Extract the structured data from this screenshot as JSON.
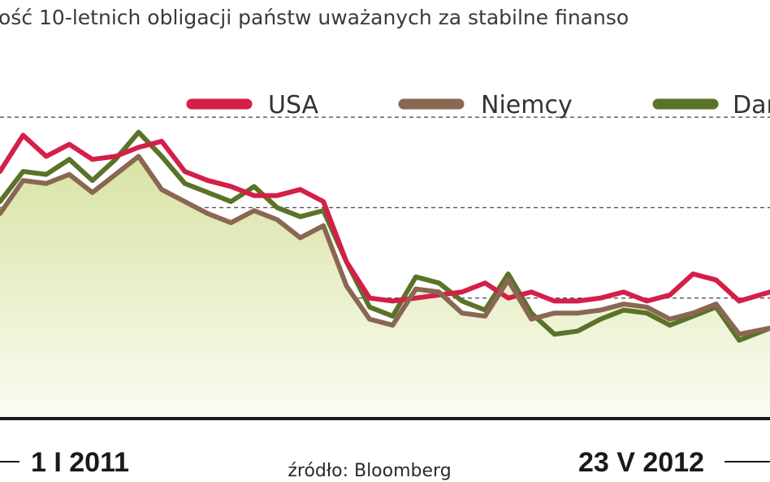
{
  "chart_data": {
    "type": "line",
    "title": "ość 10-letnich obligacji państw uważanych za stabilne finanso",
    "source": "źródło: Bloomberg",
    "x_labels": [
      "1 I 2011",
      "23 V 2012"
    ],
    "ylim": [
      0,
      6
    ],
    "grid": true,
    "legend_position": "top",
    "colors": {
      "USA": "#d41f48",
      "Niemcy": "#8a6752",
      "Dania": "#5a7328",
      "area_top": "#d8e3a4",
      "area_bottom": "#fbfcf2",
      "grid": "#555555",
      "baseline": "#1a1a1a"
    },
    "x": [
      0,
      3,
      6,
      9,
      12,
      15,
      18,
      21,
      24,
      27,
      30,
      33,
      36,
      39,
      42,
      45,
      48,
      51,
      54,
      57,
      60,
      63,
      66,
      69,
      72,
      75,
      78,
      81,
      84,
      87,
      90,
      93,
      96,
      100
    ],
    "series": [
      {
        "name": "USA",
        "values": [
          4.1,
          4.7,
          4.35,
          4.55,
          4.3,
          4.35,
          4.5,
          4.6,
          4.1,
          3.95,
          3.85,
          3.7,
          3.7,
          3.8,
          3.6,
          2.6,
          2.0,
          1.95,
          2.0,
          2.05,
          2.1,
          2.25,
          2.0,
          2.1,
          1.95,
          1.95,
          2.0,
          2.1,
          1.95,
          2.05,
          2.4,
          2.3,
          1.95,
          2.1
        ]
      },
      {
        "name": "Niemcy",
        "values": [
          3.4,
          3.95,
          3.9,
          4.05,
          3.75,
          4.05,
          4.35,
          3.8,
          3.6,
          3.4,
          3.25,
          3.45,
          3.3,
          3.0,
          3.2,
          2.2,
          1.65,
          1.55,
          2.15,
          2.1,
          1.75,
          1.7,
          2.3,
          1.65,
          1.75,
          1.75,
          1.8,
          1.9,
          1.85,
          1.65,
          1.75,
          1.9,
          1.4,
          1.5
        ]
      },
      {
        "name": "Dania",
        "values": [
          3.6,
          4.1,
          4.05,
          4.3,
          3.95,
          4.3,
          4.75,
          4.35,
          3.9,
          3.75,
          3.6,
          3.85,
          3.5,
          3.35,
          3.45,
          2.6,
          1.85,
          1.7,
          2.35,
          2.25,
          1.95,
          1.8,
          2.4,
          1.75,
          1.4,
          1.45,
          1.65,
          1.8,
          1.75,
          1.55,
          1.7,
          1.85,
          1.3,
          1.5
        ]
      }
    ]
  }
}
